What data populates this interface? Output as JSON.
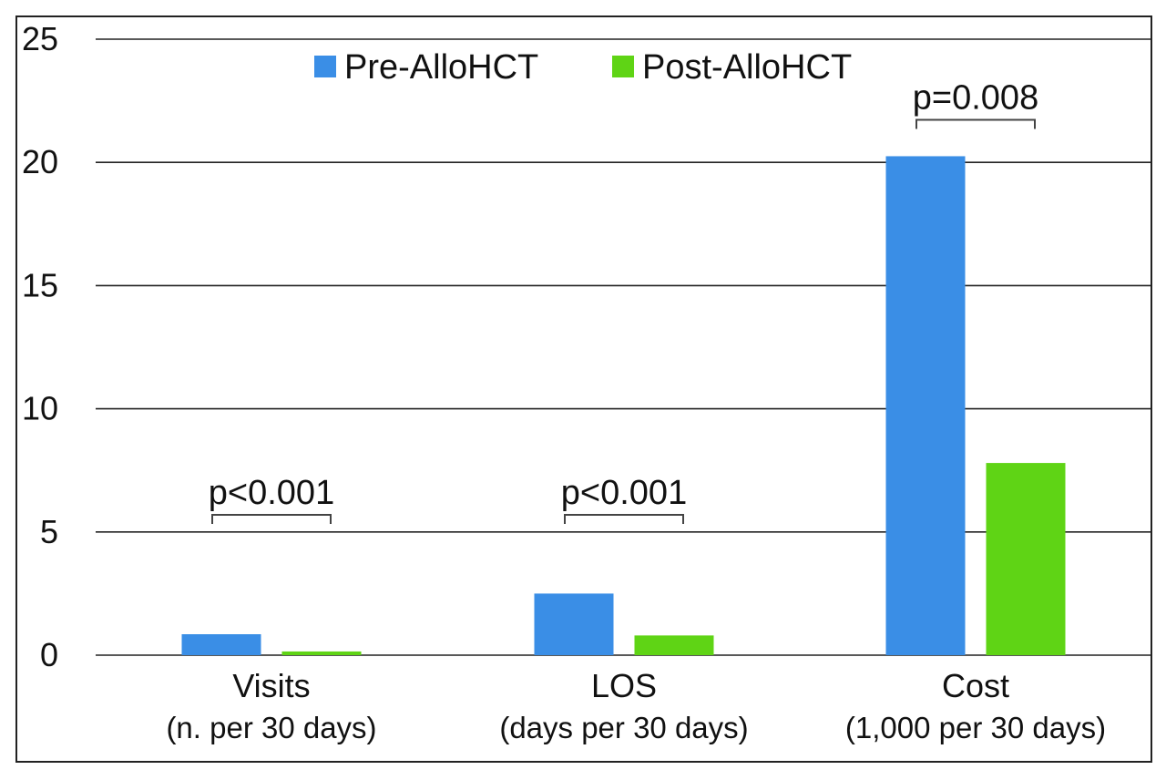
{
  "chart_data": {
    "type": "bar",
    "categories": [
      "Visits",
      "LOS",
      "Cost"
    ],
    "category_sublabels": [
      "(n. per 30 days)",
      "(days per 30 days)",
      "(1,000 per 30 days)"
    ],
    "series": [
      {
        "name": "Pre-AlloHCT",
        "values": [
          0.85,
          2.5,
          20.25
        ],
        "color": "#3a8ee6"
      },
      {
        "name": "Post-AlloHCT",
        "values": [
          0.15,
          0.8,
          7.8
        ],
        "color": "#5fd415"
      }
    ],
    "ylim": [
      0,
      25
    ],
    "yticks": [
      "0",
      "5",
      "10",
      "15",
      "20",
      "25"
    ],
    "ytick_values": [
      0,
      5,
      10,
      15,
      20,
      25
    ],
    "grid": true,
    "legend_position": "top-center",
    "annotations": [
      {
        "category": "Visits",
        "text": "p<0.001"
      },
      {
        "category": "LOS",
        "text": "p<0.001"
      },
      {
        "category": "Cost",
        "text": "p=0.008"
      }
    ],
    "title": "",
    "xlabel": "",
    "ylabel": ""
  }
}
